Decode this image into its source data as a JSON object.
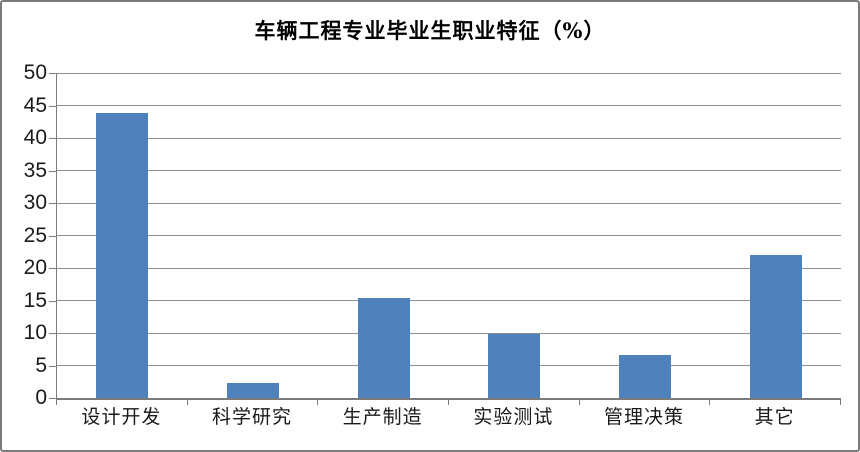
{
  "chart_data": {
    "type": "bar",
    "title": "车辆工程专业毕业生职业特征（%）",
    "categories": [
      "设计开发",
      "科学研究",
      "生产制造",
      "实验测试",
      "管理决策",
      "其它"
    ],
    "values": [
      43.9,
      2.3,
      15.4,
      9.8,
      6.6,
      22.0
    ],
    "xlabel": "",
    "ylabel": "",
    "ylim": [
      0,
      50
    ],
    "ytick_step": 5,
    "ytick_labels": [
      "0",
      "5",
      "10",
      "15",
      "20",
      "25",
      "30",
      "35",
      "40",
      "45",
      "50"
    ],
    "grid": true,
    "legend": false,
    "colors": {
      "bar": "#4f81bd",
      "gridline": "#8f8f8f",
      "axis": "#7b7b7b",
      "text": "#1a1a1a",
      "frame_border": "#7b7b7b",
      "background": "#ffffff"
    }
  }
}
